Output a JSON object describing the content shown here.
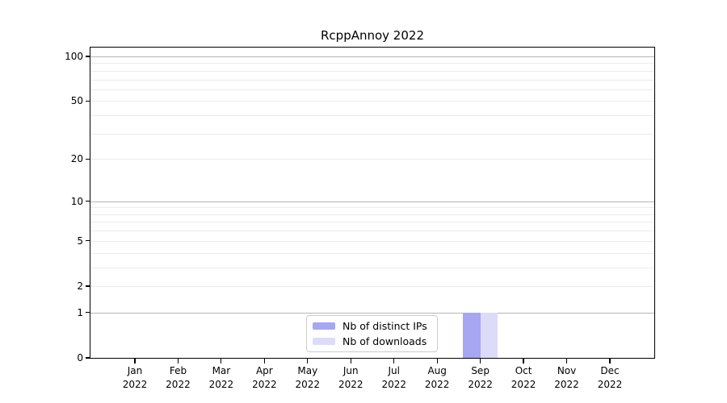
{
  "chart_data": {
    "type": "bar",
    "title": "RcppAnnoy 2022",
    "xlabel": "",
    "ylabel": "",
    "yscale": "log1p",
    "ylim": [
      0,
      114.7
    ],
    "grid": true,
    "legend_position": "lower-center-inside",
    "x_tick_labels": [
      {
        "month": "Jan",
        "year": "2022"
      },
      {
        "month": "Feb",
        "year": "2022"
      },
      {
        "month": "Mar",
        "year": "2022"
      },
      {
        "month": "Apr",
        "year": "2022"
      },
      {
        "month": "May",
        "year": "2022"
      },
      {
        "month": "Jun",
        "year": "2022"
      },
      {
        "month": "Jul",
        "year": "2022"
      },
      {
        "month": "Aug",
        "year": "2022"
      },
      {
        "month": "Sep",
        "year": "2022"
      },
      {
        "month": "Oct",
        "year": "2022"
      },
      {
        "month": "Nov",
        "year": "2022"
      },
      {
        "month": "Dec",
        "year": "2022"
      }
    ],
    "y_ticks": [
      0,
      1,
      2,
      5,
      10,
      20,
      50,
      100
    ],
    "y_major_gridlines": [
      1,
      10,
      100
    ],
    "y_minor_gridlines": [
      2,
      3,
      4,
      5,
      6,
      7,
      8,
      9,
      20,
      30,
      40,
      50,
      60,
      70,
      80,
      90
    ],
    "series": [
      {
        "name": "Nb of distinct IPs",
        "color": "#a6a6f3",
        "values": [
          0,
          0,
          0,
          0,
          0,
          0,
          0,
          0,
          1,
          0,
          0,
          0
        ]
      },
      {
        "name": "Nb of downloads",
        "color": "#dcdcf8",
        "values": [
          0,
          0,
          0,
          0,
          0,
          0,
          0,
          0,
          1,
          0,
          0,
          0
        ]
      }
    ]
  },
  "colors": {
    "background": "#ffffff",
    "spine": "#000000",
    "grid_major": "#b5b5b5",
    "grid_minor": "#ebebeb",
    "legend_border": "#cccccc",
    "text": "#000000"
  }
}
